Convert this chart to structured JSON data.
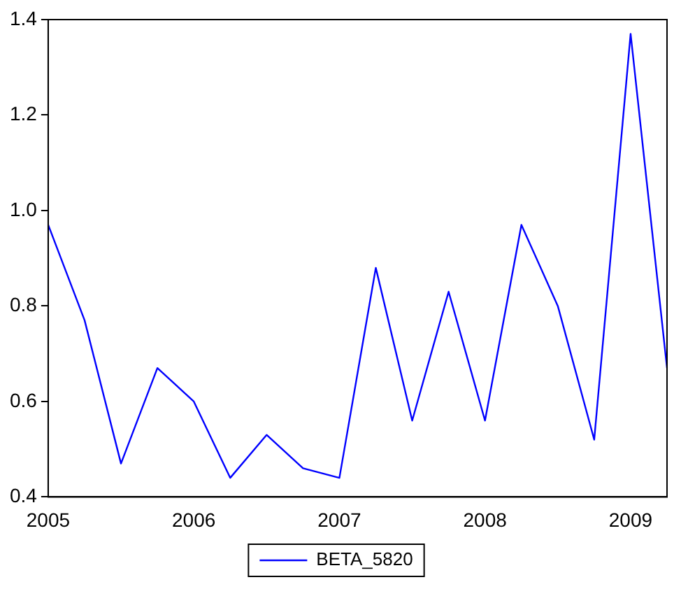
{
  "chart_data": {
    "type": "line",
    "categories": [
      "2005",
      null,
      null,
      null,
      "2006",
      null,
      null,
      null,
      "2007",
      null,
      null,
      null,
      "2008",
      null,
      null,
      null,
      "2009",
      null
    ],
    "series": [
      {
        "name": "BETA_5820",
        "color": "#0000ff",
        "values": [
          0.97,
          0.77,
          0.47,
          0.67,
          0.6,
          0.44,
          0.53,
          0.46,
          0.44,
          0.88,
          0.56,
          0.83,
          0.56,
          0.97,
          0.8,
          0.52,
          1.37,
          0.67
        ]
      }
    ],
    "ylim": [
      0.4,
      1.4
    ],
    "yticks": [
      0.4,
      0.6,
      0.8,
      {
        "value": 1,
        "label": "1.0"
      },
      1.2,
      1.4
    ],
    "grid": false,
    "legend": "bottom",
    "marker": "none",
    "line_style": "solid"
  }
}
